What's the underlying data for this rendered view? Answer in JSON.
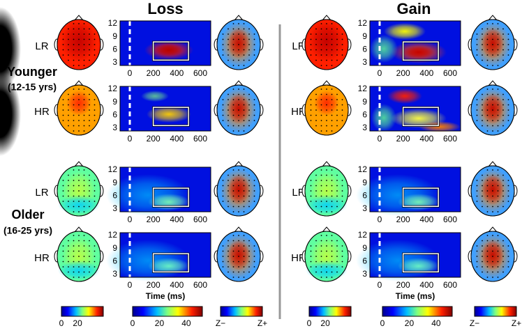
{
  "columns": [
    "Loss",
    "Gain"
  ],
  "groups": [
    {
      "label": "Younger",
      "range": "(12-15 yrs)"
    },
    {
      "label": "Older",
      "range": "(16-25 yrs)"
    }
  ],
  "conditions": [
    "LR",
    "HR"
  ],
  "panel_axes": {
    "yticks": [
      12,
      9,
      6,
      3
    ],
    "xticks": [
      0,
      200,
      400,
      600
    ],
    "xlabel": "Time (ms)"
  },
  "colorbars": {
    "power": [
      0,
      20
    ],
    "tf": [
      0,
      20,
      40
    ],
    "z": [
      "Z−",
      "Z+"
    ]
  }
}
